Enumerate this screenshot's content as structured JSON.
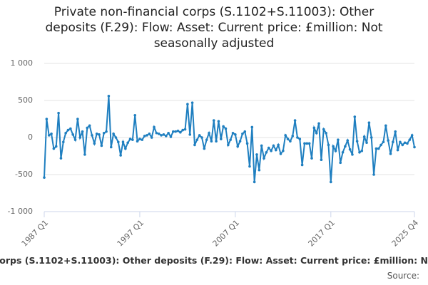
{
  "chart_data": {
    "type": "line",
    "title": "Private non-financial corps (S.1102+S.11003): Other deposits (F.29): Flow: Asset: Current price: £million: Not seasonally adjusted",
    "source_label": "Source:",
    "categories": [
      "1987 Q1",
      null,
      null,
      null,
      null,
      null,
      null,
      null,
      null,
      null,
      null,
      null,
      null,
      null,
      null,
      null,
      null,
      null,
      null,
      null,
      null,
      null,
      null,
      null,
      null,
      null,
      null,
      null,
      null,
      null,
      null,
      null,
      null,
      null,
      null,
      null,
      null,
      null,
      null,
      null,
      "1997 Q1",
      null,
      null,
      null,
      null,
      null,
      null,
      null,
      null,
      null,
      null,
      null,
      null,
      null,
      null,
      null,
      null,
      null,
      null,
      null,
      null,
      null,
      null,
      null,
      null,
      null,
      null,
      null,
      null,
      null,
      null,
      null,
      null,
      null,
      null,
      null,
      null,
      null,
      null,
      null,
      "2007 Q1",
      null,
      null,
      null,
      null,
      null,
      null,
      null,
      null,
      null,
      null,
      null,
      null,
      null,
      null,
      null,
      null,
      null,
      null,
      null,
      null,
      null,
      null,
      null,
      null,
      null,
      null,
      null,
      null,
      null,
      null,
      null,
      null,
      null,
      null,
      null,
      null,
      null,
      null,
      null,
      "2017 Q1",
      null,
      null,
      null,
      null,
      null,
      null,
      null,
      null,
      null,
      null,
      null,
      null,
      null,
      null,
      null,
      null,
      null,
      null,
      null,
      null,
      null,
      null,
      null,
      null,
      null,
      null,
      null,
      null,
      null,
      null,
      null,
      null,
      null,
      null,
      "2025 Q4"
    ],
    "series": [
      {
        "name": "Private non-financial corps (S.1102+S.11003): Other deposits (F.29): Flow: Asset: Current price: £million: Not seasonally adjusted",
        "color": "#1f7fc0",
        "values": [
          -540,
          250,
          30,
          50,
          -150,
          -120,
          330,
          -280,
          -60,
          60,
          100,
          120,
          40,
          -30,
          250,
          0,
          80,
          -230,
          130,
          160,
          30,
          -80,
          50,
          40,
          -110,
          60,
          80,
          560,
          -130,
          50,
          0,
          -60,
          -240,
          -60,
          -150,
          -70,
          -20,
          -30,
          300,
          -50,
          -20,
          -30,
          20,
          30,
          50,
          0,
          140,
          60,
          50,
          30,
          40,
          20,
          60,
          10,
          80,
          80,
          90,
          70,
          100,
          110,
          450,
          40,
          470,
          -100,
          -30,
          30,
          0,
          -150,
          -30,
          60,
          -50,
          230,
          -50,
          220,
          -20,
          150,
          120,
          -100,
          -30,
          60,
          40,
          -120,
          -50,
          50,
          80,
          -80,
          -390,
          140,
          -600,
          -230,
          -440,
          -110,
          -280,
          -200,
          -140,
          -180,
          -110,
          -170,
          -100,
          -220,
          -180,
          30,
          -20,
          -50,
          20,
          230,
          0,
          -20,
          -370,
          -80,
          -80,
          -80,
          -280,
          130,
          60,
          190,
          -300,
          110,
          60,
          -100,
          -600,
          -120,
          -180,
          -30,
          -340,
          -200,
          -120,
          -40,
          -160,
          -230,
          280,
          -50,
          -200,
          -180,
          10,
          -70,
          200,
          0,
          -500,
          -150,
          -150,
          -100,
          -60,
          160,
          -40,
          -220,
          -60,
          80,
          -170,
          -60,
          -100,
          -70,
          -80,
          -30,
          30,
          -130
        ]
      }
    ],
    "ylim": [
      -1000,
      1000
    ],
    "yticks": [
      {
        "value": -1000,
        "label": "-1 000"
      },
      -500,
      0,
      500,
      {
        "value": 1000,
        "label": "1 000"
      }
    ],
    "grid": true
  }
}
